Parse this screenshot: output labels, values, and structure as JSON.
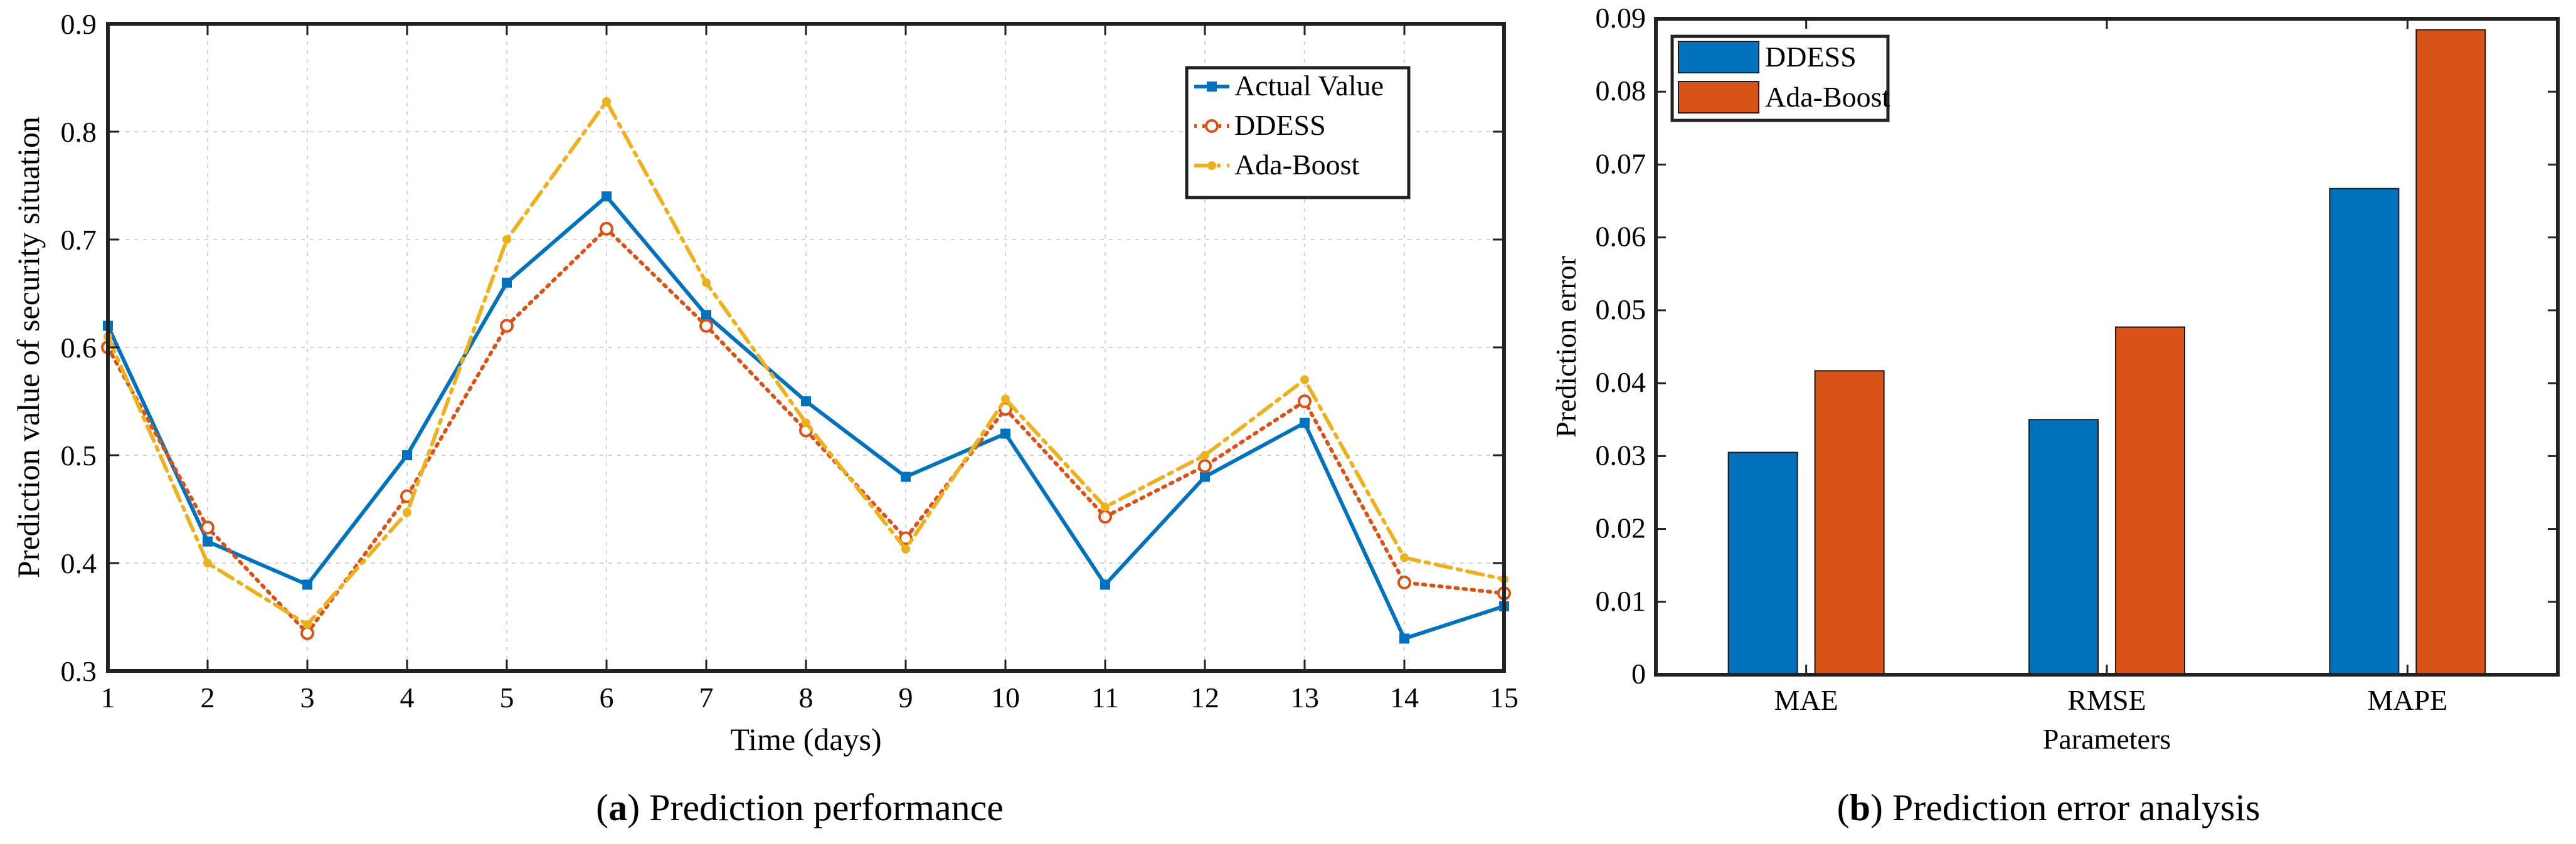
{
  "chart_data": [
    {
      "type": "line",
      "caption_label": "a",
      "caption_text": "Prediction performance",
      "xlabel": "Time (days)",
      "ylabel": "Prediction value of security situation",
      "xlim": [
        1,
        15
      ],
      "ylim": [
        0.3,
        0.9
      ],
      "x_ticks": [
        1,
        2,
        3,
        4,
        5,
        6,
        7,
        8,
        9,
        10,
        11,
        12,
        13,
        14,
        15
      ],
      "y_ticks": [
        0.3,
        0.4,
        0.5,
        0.6,
        0.7,
        0.8,
        0.9
      ],
      "y_tick_labels": [
        "0.3",
        "0.4",
        "0.5",
        "0.6",
        "0.7",
        "0.8",
        "0.9"
      ],
      "grid": true,
      "legend_position": "top-right",
      "x": [
        1,
        2,
        3,
        4,
        5,
        6,
        7,
        8,
        9,
        10,
        11,
        12,
        13,
        14,
        15
      ],
      "series": [
        {
          "name": "Actual Value",
          "color": "#0072BD",
          "style": "solid",
          "marker": "square",
          "values": [
            0.62,
            0.42,
            0.38,
            0.5,
            0.66,
            0.74,
            0.63,
            0.55,
            0.48,
            0.52,
            0.38,
            0.48,
            0.53,
            0.33,
            0.36
          ]
        },
        {
          "name": "DDESS",
          "color": "#D95319",
          "style": "dotted",
          "marker": "circle",
          "values": [
            0.6,
            0.433,
            0.335,
            0.462,
            0.62,
            0.71,
            0.62,
            0.523,
            0.423,
            0.543,
            0.443,
            0.49,
            0.55,
            0.382,
            0.372
          ]
        },
        {
          "name": "Ada-Boost",
          "color": "#EDB120",
          "style": "dashdot",
          "marker": "dot",
          "values": [
            0.61,
            0.4,
            0.343,
            0.447,
            0.7,
            0.828,
            0.66,
            0.53,
            0.413,
            0.552,
            0.452,
            0.5,
            0.57,
            0.405,
            0.385
          ]
        }
      ]
    },
    {
      "type": "bar",
      "caption_label": "b",
      "caption_text": "Prediction error analysis",
      "xlabel": "Parameters",
      "ylabel": "Prediction error",
      "ylim": [
        0,
        0.09
      ],
      "y_ticks": [
        0,
        0.01,
        0.02,
        0.03,
        0.04,
        0.05,
        0.06,
        0.07,
        0.08,
        0.09
      ],
      "y_tick_labels": [
        "0",
        "0.01",
        "0.02",
        "0.03",
        "0.04",
        "0.05",
        "0.06",
        "0.07",
        "0.08",
        "0.09"
      ],
      "grid": false,
      "legend_position": "top-left",
      "categories": [
        "MAE",
        "RMSE",
        "MAPE"
      ],
      "series": [
        {
          "name": "DDESS",
          "color": "#0072BD",
          "values": [
            0.0305,
            0.035,
            0.0667
          ]
        },
        {
          "name": "Ada-Boost",
          "color": "#D95319",
          "values": [
            0.0417,
            0.0477,
            0.0885
          ]
        }
      ]
    }
  ]
}
